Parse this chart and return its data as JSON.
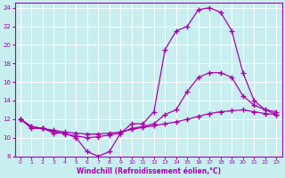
{
  "background_color": "#c8eef0",
  "grid_color": "#ffffff",
  "line_color": "#aa00aa",
  "xlabel": "Windchill (Refroidissement éolien,°C)",
  "xlim": [
    -0.5,
    23.5
  ],
  "ylim": [
    8,
    24.5
  ],
  "yticks": [
    8,
    10,
    12,
    14,
    16,
    18,
    20,
    22,
    24
  ],
  "xticks": [
    0,
    1,
    2,
    3,
    4,
    5,
    6,
    7,
    8,
    9,
    10,
    11,
    12,
    13,
    14,
    15,
    16,
    17,
    18,
    19,
    20,
    21,
    22,
    23
  ],
  "line1_x": [
    0,
    1,
    2,
    3,
    4,
    5,
    6,
    7,
    8,
    9,
    10,
    11,
    12,
    13,
    14,
    15,
    16,
    17,
    18,
    19,
    20,
    21,
    22,
    23
  ],
  "line1_y": [
    12,
    11,
    11,
    10.5,
    10.5,
    10,
    8.5,
    8,
    8.5,
    10.5,
    11.5,
    11.5,
    12.8,
    19.5,
    21.5,
    22,
    23.8,
    24,
    23.5,
    21.5,
    17,
    14,
    13,
    12.5
  ],
  "line2_x": [
    0,
    1,
    2,
    3,
    4,
    5,
    6,
    7,
    8,
    9,
    10,
    11,
    12,
    13,
    14,
    15,
    16,
    17,
    18,
    19,
    20,
    21,
    22,
    23
  ],
  "line2_y": [
    12,
    11.2,
    11,
    10.7,
    10.4,
    10.2,
    10.0,
    10.1,
    10.3,
    10.5,
    11.0,
    11.2,
    11.5,
    12.5,
    13.0,
    15.0,
    16.5,
    17.0,
    17.0,
    16.5,
    14.5,
    13.5,
    13.0,
    12.8
  ],
  "line3_x": [
    0,
    1,
    2,
    3,
    4,
    5,
    6,
    7,
    8,
    9,
    10,
    11,
    12,
    13,
    14,
    15,
    16,
    17,
    18,
    19,
    20,
    21,
    22,
    23
  ],
  "line3_y": [
    12,
    11.2,
    11.0,
    10.8,
    10.6,
    10.5,
    10.4,
    10.4,
    10.5,
    10.6,
    10.9,
    11.1,
    11.3,
    11.5,
    11.7,
    12.0,
    12.3,
    12.6,
    12.8,
    12.9,
    13.0,
    12.8,
    12.6,
    12.5
  ]
}
